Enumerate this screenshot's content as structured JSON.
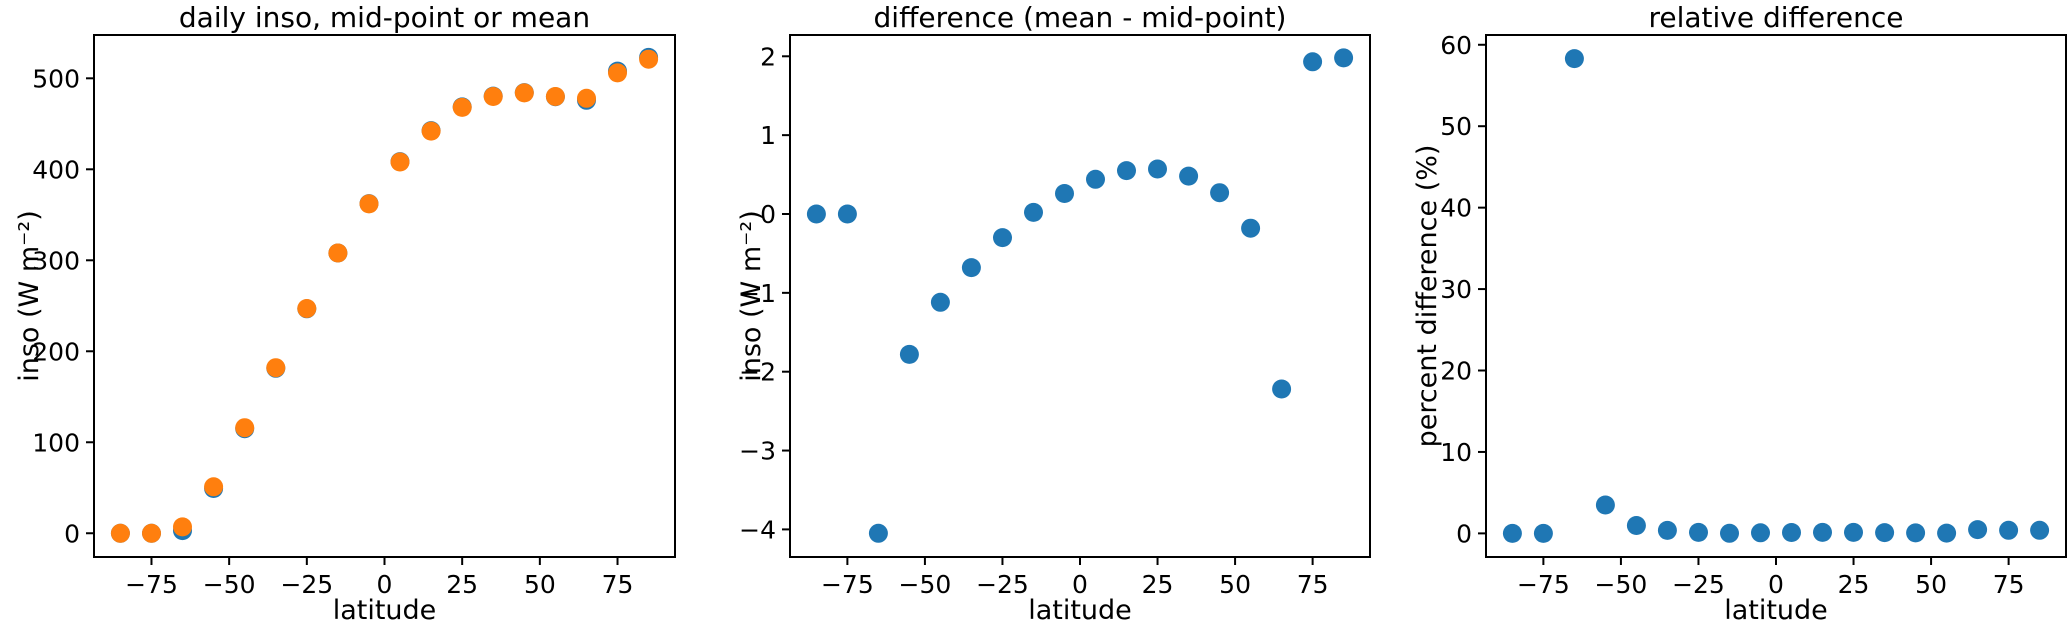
{
  "figure": {
    "background": "#ffffff",
    "text_color": "#000000",
    "series_colors": {
      "blue": "#1f77b4",
      "orange": "#ff7f0e"
    }
  },
  "chart_data": [
    {
      "type": "scatter",
      "title": "daily inso, mid-point or mean",
      "xlabel": "latitude",
      "ylabel": "inso (W m⁻²)",
      "grid": false,
      "legend": null,
      "x": [
        -85,
        -75,
        -65,
        -55,
        -45,
        -35,
        -25,
        -15,
        -5,
        5,
        15,
        25,
        35,
        45,
        55,
        65,
        75,
        85
      ],
      "series": [
        {
          "name": "mean",
          "color": "#1f77b4",
          "values": [
            0,
            0,
            2.95,
            49.22,
            114.88,
            181.32,
            246.7,
            308.02,
            362.26,
            408.44,
            442.55,
            468.57,
            480.48,
            484.27,
            479.82,
            475.78,
            507.93,
            522.98
          ]
        },
        {
          "name": "mid-point",
          "color": "#ff7f0e",
          "values": [
            0,
            0,
            7,
            51,
            116,
            182,
            247,
            308,
            362,
            408,
            442,
            468,
            480,
            484,
            480,
            478,
            506,
            521
          ]
        }
      ],
      "xlim": [
        -93.5,
        93.5
      ],
      "ylim": [
        -26.1,
        547.6
      ],
      "xticks": [
        -75,
        -50,
        -25,
        0,
        25,
        50,
        75
      ],
      "yticks": [
        0,
        100,
        200,
        300,
        400,
        500
      ]
    },
    {
      "type": "scatter",
      "title": "difference (mean - mid-point)",
      "xlabel": "latitude",
      "ylabel": "inso (W m⁻²)",
      "grid": false,
      "legend": null,
      "x": [
        -85,
        -75,
        -65,
        -55,
        -45,
        -35,
        -25,
        -15,
        -5,
        5,
        15,
        25,
        35,
        45,
        55,
        65,
        75,
        85
      ],
      "series": [
        {
          "name": "mean - mid-point",
          "color": "#1f77b4",
          "values": [
            0.0,
            0.0,
            -4.05,
            -1.78,
            -1.12,
            -0.68,
            -0.3,
            0.02,
            0.26,
            0.44,
            0.55,
            0.57,
            0.48,
            0.27,
            -0.18,
            -2.22,
            1.93,
            1.98
          ]
        }
      ],
      "xlim": [
        -93.5,
        93.5
      ],
      "ylim": [
        -4.35,
        2.27
      ],
      "xticks": [
        -75,
        -50,
        -25,
        0,
        25,
        50,
        75
      ],
      "yticks": [
        -4,
        -3,
        -2,
        -1,
        0,
        1,
        2
      ]
    },
    {
      "type": "scatter",
      "title": "relative difference",
      "xlabel": "latitude",
      "ylabel": "percent difference (%)",
      "grid": false,
      "legend": null,
      "x": [
        -85,
        -75,
        -65,
        -55,
        -45,
        -35,
        -25,
        -15,
        -5,
        5,
        15,
        25,
        35,
        45,
        55,
        65,
        75,
        85
      ],
      "series": [
        {
          "name": "percent difference",
          "color": "#1f77b4",
          "values": [
            0.0,
            0.0,
            58.3,
            3.49,
            0.97,
            0.37,
            0.12,
            0.01,
            0.07,
            0.11,
            0.12,
            0.12,
            0.1,
            0.06,
            0.04,
            0.47,
            0.38,
            0.38
          ]
        }
      ],
      "xlim": [
        -93.5,
        93.5
      ],
      "ylim": [
        -2.9,
        61.2
      ],
      "xticks": [
        -75,
        -50,
        -25,
        0,
        25,
        50,
        75
      ],
      "yticks": [
        0,
        10,
        20,
        30,
        40,
        50,
        60
      ]
    }
  ]
}
